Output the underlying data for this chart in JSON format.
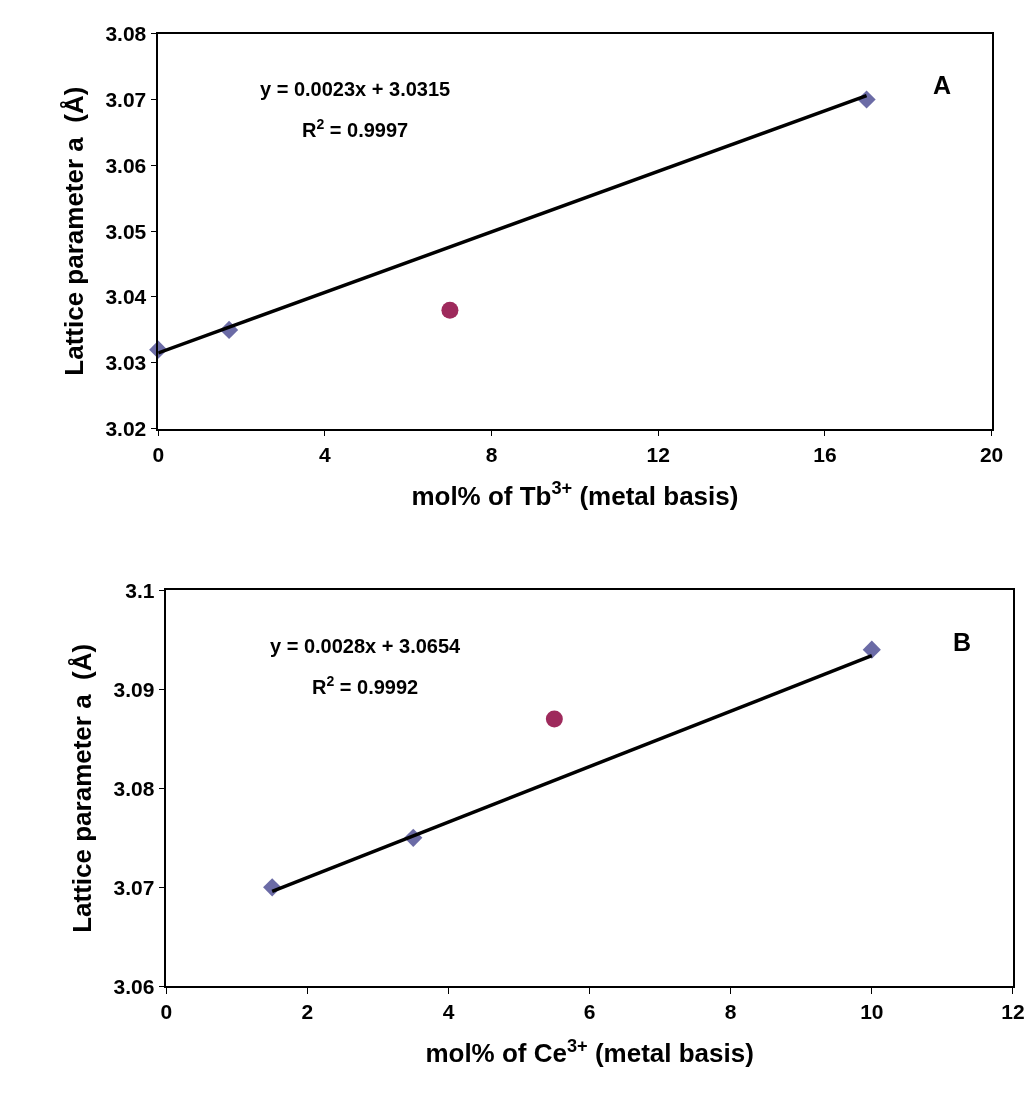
{
  "chart_data": [
    {
      "type": "scatter",
      "xlabel": "mol% of Tb$^{3+}$ (metal basis)",
      "ylabel": "Lattice parameter a  (Å)",
      "xlim": [
        0,
        20
      ],
      "xticks": [
        0,
        4,
        8,
        12,
        16,
        20
      ],
      "ylim": [
        3.02,
        3.08
      ],
      "yticks": [
        3.02,
        3.03,
        3.04,
        3.05,
        3.06,
        3.07,
        3.08
      ],
      "annotations": [
        "y = 0.0023x + 3.0315",
        "R$^{2}$ = 0.9997",
        "A"
      ],
      "series": [
        {
          "marker": "diamond",
          "color": "#6b6ba6",
          "x": [
            0,
            1.7,
            17
          ],
          "values": [
            3.032,
            3.035,
            3.07
          ]
        },
        {
          "marker": "circle",
          "color": "#9e2a5c",
          "x": [
            7
          ],
          "values": [
            3.038
          ]
        },
        {
          "type": "line",
          "marker": "none",
          "line_style": "solid",
          "color": "#000000",
          "x": [
            0,
            17
          ],
          "values": [
            3.0315,
            3.0706
          ]
        }
      ]
    },
    {
      "type": "scatter",
      "xlabel": "mol% of Ce$^{3+}$ (metal basis)",
      "ylabel": "Lattice parameter a  (Å)",
      "xlim": [
        0,
        12
      ],
      "xticks": [
        0,
        2,
        4,
        6,
        8,
        10,
        12
      ],
      "ylim": [
        3.06,
        3.1
      ],
      "yticks": [
        3.06,
        3.07,
        3.08,
        3.09,
        {
          "value": 3.1,
          "label": "3.1"
        }
      ],
      "annotations": [
        "y = 0.0028x + 3.0654",
        "R$^{2}$ = 0.9992",
        "B"
      ],
      "series": [
        {
          "marker": "diamond",
          "color": "#6b6ba6",
          "x": [
            1.5,
            3.5,
            10
          ],
          "values": [
            3.07,
            3.075,
            3.094
          ]
        },
        {
          "marker": "circle",
          "color": "#9e2a5c",
          "x": [
            5.5
          ],
          "values": [
            3.087
          ]
        },
        {
          "type": "line",
          "marker": "none",
          "line_style": "solid",
          "color": "#000000",
          "x": [
            1.5,
            10
          ],
          "values": [
            3.0696,
            3.0934
          ]
        }
      ]
    }
  ]
}
